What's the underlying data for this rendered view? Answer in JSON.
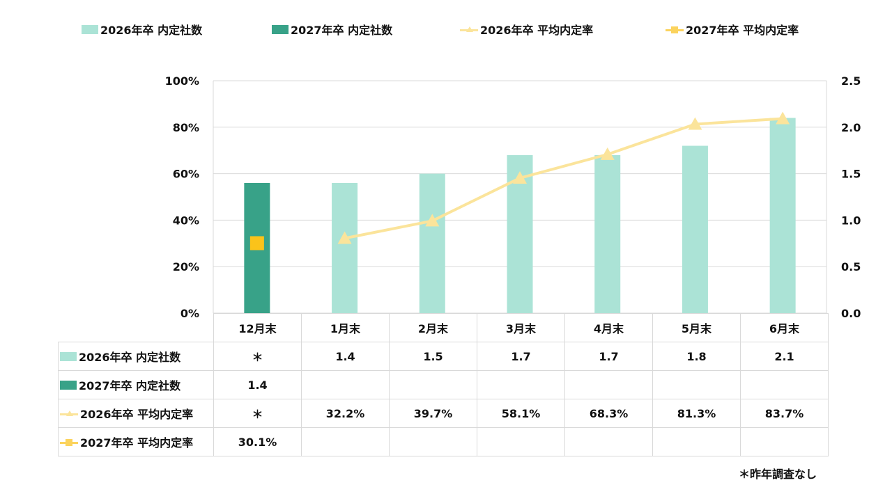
{
  "legend": [
    {
      "label": "2026年卒 内定社数",
      "type": "bar",
      "color": "#abe3d6"
    },
    {
      "label": "2027年卒 内定社数",
      "type": "bar",
      "color": "#38a288"
    },
    {
      "label": "2026年卒 平均内定率",
      "type": "line",
      "color": "#fbe49b",
      "marker": "triangle-icon"
    },
    {
      "label": "2027年卒 平均内定率",
      "type": "line",
      "color": "#fbd35d",
      "marker": "square-icon"
    }
  ],
  "chart_data": {
    "type": "bar+line",
    "title": "",
    "categories": [
      "12月末",
      "1月末",
      "2月末",
      "3月末",
      "4月末",
      "5月末",
      "6月末"
    ],
    "left_axis": {
      "label": "",
      "ylim": [
        0,
        100
      ],
      "ticks": [
        "0%",
        "20%",
        "40%",
        "60%",
        "80%",
        "100%"
      ],
      "tick_values": [
        0,
        20,
        40,
        60,
        80,
        100
      ]
    },
    "right_axis": {
      "label": "",
      "ylim": [
        0,
        2.5
      ],
      "ticks": [
        "0.0",
        "0.5",
        "1.0",
        "1.5",
        "2.0",
        "2.5"
      ],
      "tick_values": [
        0,
        0.5,
        1.0,
        1.5,
        2.0,
        2.5
      ]
    },
    "grid": true,
    "legend_position": "top",
    "series": [
      {
        "name": "2026年卒 内定社数",
        "type": "bar",
        "axis": "right",
        "color": "#abe3d6",
        "values": [
          null,
          1.4,
          1.5,
          1.7,
          1.7,
          1.8,
          2.1
        ]
      },
      {
        "name": "2027年卒 内定社数",
        "type": "bar",
        "axis": "right",
        "color": "#38a288",
        "values": [
          1.4,
          null,
          null,
          null,
          null,
          null,
          null
        ]
      },
      {
        "name": "2026年卒 平均内定率",
        "type": "line",
        "axis": "left",
        "color": "#fbe49b",
        "marker": "triangle",
        "values": [
          null,
          32.2,
          39.7,
          58.1,
          68.3,
          81.3,
          83.7
        ]
      },
      {
        "name": "2027年卒 平均内定率",
        "type": "line",
        "axis": "left",
        "color": "#fbc31a",
        "marker": "square",
        "values": [
          30.1,
          null,
          null,
          null,
          null,
          null,
          null
        ]
      }
    ]
  },
  "table": {
    "headers": [
      "12月末",
      "1月末",
      "2月末",
      "3月末",
      "4月末",
      "5月末",
      "6月末"
    ],
    "rows": [
      {
        "label": "2026年卒 内定社数",
        "swatch": "bar",
        "color": "#abe3d6",
        "cells": [
          "＊",
          "1.4",
          "1.5",
          "1.7",
          "1.7",
          "1.8",
          "2.1"
        ]
      },
      {
        "label": "2027年卒 内定社数",
        "swatch": "bar",
        "color": "#38a288",
        "cells": [
          "1.4",
          "",
          "",
          "",
          "",
          "",
          ""
        ]
      },
      {
        "label": "2026年卒 平均内定率",
        "swatch": "line",
        "color": "#fbe49b",
        "cells": [
          "＊",
          "32.2%",
          "39.7%",
          "58.1%",
          "68.3%",
          "81.3%",
          "83.7%"
        ]
      },
      {
        "label": "2027年卒 平均内定率",
        "swatch": "line",
        "color": "#fbd35d",
        "cells": [
          "30.1%",
          "",
          "",
          "",
          "",
          "",
          ""
        ]
      }
    ]
  },
  "footnote": "＊昨年調査なし"
}
